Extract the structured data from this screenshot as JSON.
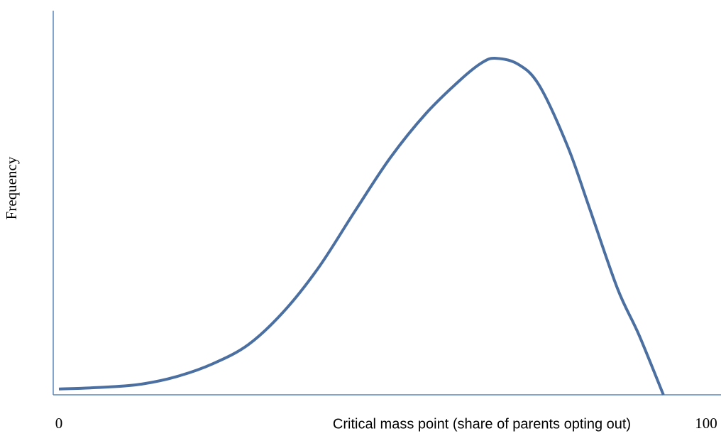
{
  "chart_data": {
    "type": "line",
    "x_label": "Critical mass point (share of parents opting out)",
    "y_label": "Frequency",
    "xlim": [
      0,
      100
    ],
    "xticks": [
      0,
      100
    ],
    "ylim": [
      0,
      100
    ],
    "x": [
      0,
      7.3,
      12.8,
      18.3,
      23.8,
      29.3,
      34.8,
      40.2,
      45.7,
      51.2,
      56.7,
      62.1,
      65.4,
      67.5,
      70.9,
      74.2,
      78.6,
      81.9,
      86.3,
      89.6,
      93.4
    ],
    "series": [
      {
        "color": "#4a6fa0",
        "values": [
          1.5,
          2.0,
          2.8,
          4.8,
          8.1,
          13.1,
          21.8,
          33.3,
          47.7,
          61.7,
          73.2,
          82.1,
          86.5,
          87.6,
          86.1,
          80.6,
          64.7,
          49.0,
          27.7,
          15.7,
          0
        ]
      }
    ]
  }
}
